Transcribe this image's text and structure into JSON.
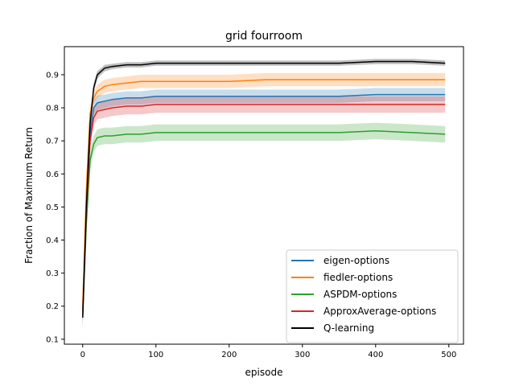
{
  "chart_data": {
    "type": "line",
    "title": "grid  fourroom",
    "xlabel": "episode",
    "ylabel": "Fraction of Maximum Return",
    "xlim": [
      -25,
      520
    ],
    "ylim": [
      0.085,
      0.985
    ],
    "xticks": [
      0,
      100,
      200,
      300,
      400,
      500
    ],
    "yticks": [
      0.1,
      0.2,
      0.3,
      0.4,
      0.5,
      0.6,
      0.7,
      0.8,
      0.9
    ],
    "grid": false,
    "legend_position": "bottom-right",
    "series": [
      {
        "name": "eigen-options",
        "color": "#1f77b4",
        "x": [
          0,
          5,
          10,
          15,
          20,
          30,
          40,
          60,
          80,
          100,
          150,
          200,
          250,
          300,
          350,
          400,
          450,
          495
        ],
        "values": [
          0.19,
          0.5,
          0.72,
          0.8,
          0.815,
          0.82,
          0.825,
          0.83,
          0.83,
          0.835,
          0.835,
          0.835,
          0.835,
          0.835,
          0.835,
          0.84,
          0.84,
          0.84
        ],
        "band": [
          0.035,
          0.04,
          0.03,
          0.025,
          0.022,
          0.02,
          0.02,
          0.02,
          0.02,
          0.02,
          0.02,
          0.02,
          0.02,
          0.02,
          0.02,
          0.02,
          0.02,
          0.02
        ]
      },
      {
        "name": "fiedler-options",
        "color": "#ff7f0e",
        "x": [
          0,
          5,
          10,
          15,
          20,
          30,
          40,
          60,
          80,
          100,
          150,
          200,
          250,
          300,
          350,
          400,
          450,
          495
        ],
        "values": [
          0.2,
          0.55,
          0.78,
          0.83,
          0.85,
          0.865,
          0.87,
          0.875,
          0.88,
          0.88,
          0.88,
          0.88,
          0.885,
          0.885,
          0.885,
          0.885,
          0.885,
          0.885
        ],
        "band": [
          0.035,
          0.04,
          0.025,
          0.02,
          0.02,
          0.02,
          0.02,
          0.02,
          0.02,
          0.02,
          0.02,
          0.02,
          0.02,
          0.02,
          0.02,
          0.02,
          0.02,
          0.02
        ]
      },
      {
        "name": "ASPDM-options",
        "color": "#2ca02c",
        "x": [
          0,
          5,
          10,
          15,
          20,
          30,
          40,
          60,
          80,
          100,
          150,
          200,
          250,
          300,
          350,
          400,
          450,
          495
        ],
        "values": [
          0.17,
          0.45,
          0.64,
          0.69,
          0.71,
          0.715,
          0.715,
          0.72,
          0.72,
          0.725,
          0.725,
          0.725,
          0.725,
          0.725,
          0.725,
          0.73,
          0.725,
          0.72
        ],
        "band": [
          0.035,
          0.04,
          0.03,
          0.025,
          0.025,
          0.025,
          0.025,
          0.025,
          0.025,
          0.025,
          0.025,
          0.025,
          0.025,
          0.025,
          0.025,
          0.025,
          0.025,
          0.025
        ]
      },
      {
        "name": "ApproxAverage-options",
        "color": "#d62728",
        "x": [
          0,
          5,
          10,
          15,
          20,
          30,
          40,
          60,
          80,
          100,
          150,
          200,
          250,
          300,
          350,
          400,
          450,
          495
        ],
        "values": [
          0.18,
          0.48,
          0.7,
          0.77,
          0.79,
          0.795,
          0.8,
          0.805,
          0.805,
          0.81,
          0.81,
          0.81,
          0.81,
          0.81,
          0.81,
          0.81,
          0.81,
          0.81
        ],
        "band": [
          0.035,
          0.04,
          0.03,
          0.025,
          0.025,
          0.025,
          0.025,
          0.025,
          0.025,
          0.025,
          0.025,
          0.025,
          0.025,
          0.025,
          0.025,
          0.025,
          0.025,
          0.025
        ]
      },
      {
        "name": "Q-learning",
        "color": "#000000",
        "x": [
          0,
          5,
          10,
          15,
          20,
          25,
          30,
          40,
          60,
          80,
          100,
          150,
          200,
          250,
          300,
          350,
          400,
          450,
          495
        ],
        "values": [
          0.165,
          0.5,
          0.75,
          0.86,
          0.9,
          0.91,
          0.92,
          0.925,
          0.93,
          0.93,
          0.935,
          0.935,
          0.935,
          0.935,
          0.935,
          0.935,
          0.94,
          0.94,
          0.935
        ],
        "band": [
          0.03,
          0.03,
          0.02,
          0.015,
          0.012,
          0.01,
          0.01,
          0.008,
          0.008,
          0.008,
          0.008,
          0.008,
          0.008,
          0.008,
          0.008,
          0.008,
          0.008,
          0.008,
          0.008
        ]
      }
    ]
  }
}
